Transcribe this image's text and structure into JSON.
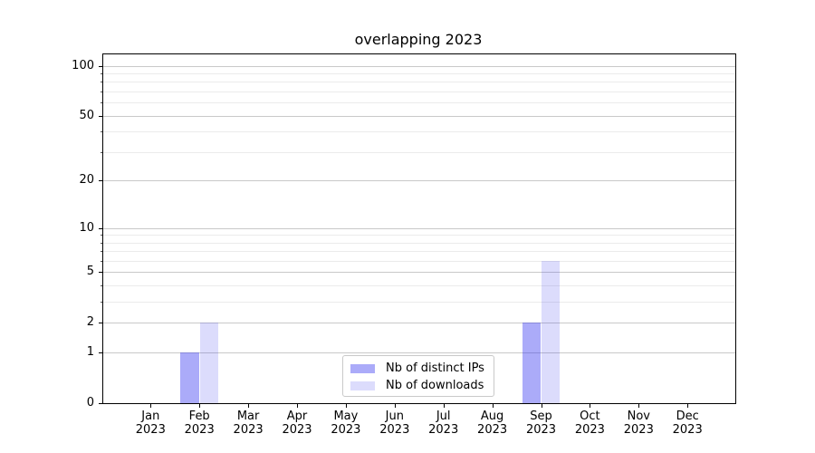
{
  "figure": {
    "background": "#ffffff"
  },
  "chart_data": {
    "type": "bar",
    "title": "overlapping 2023",
    "categories": [
      "Jan",
      "Feb",
      "Mar",
      "Apr",
      "May",
      "Jun",
      "Jul",
      "Aug",
      "Sep",
      "Oct",
      "Nov",
      "Dec"
    ],
    "category_year": "2023",
    "series": [
      {
        "name": "Nb of distinct IPs",
        "color": "#2d2df0",
        "alpha": 0.4,
        "values": [
          0,
          1,
          0,
          0,
          0,
          0,
          0,
          0,
          2,
          0,
          0,
          0
        ]
      },
      {
        "name": "Nb of downloads",
        "color": "#2d2df0",
        "alpha": 0.17,
        "values": [
          0,
          2,
          0,
          0,
          0,
          0,
          0,
          0,
          6,
          0,
          0,
          0
        ]
      }
    ],
    "yscale": "log1p",
    "y_ticks": [
      0,
      1,
      2,
      5,
      10,
      20,
      50,
      100
    ],
    "y_minor_ticks": [
      3,
      4,
      6,
      7,
      8,
      9,
      30,
      40,
      60,
      70,
      80,
      90
    ],
    "ylim": [
      0,
      116
    ],
    "xlabel": "",
    "ylabel": "",
    "grid": true,
    "legend_position": "lower center"
  }
}
